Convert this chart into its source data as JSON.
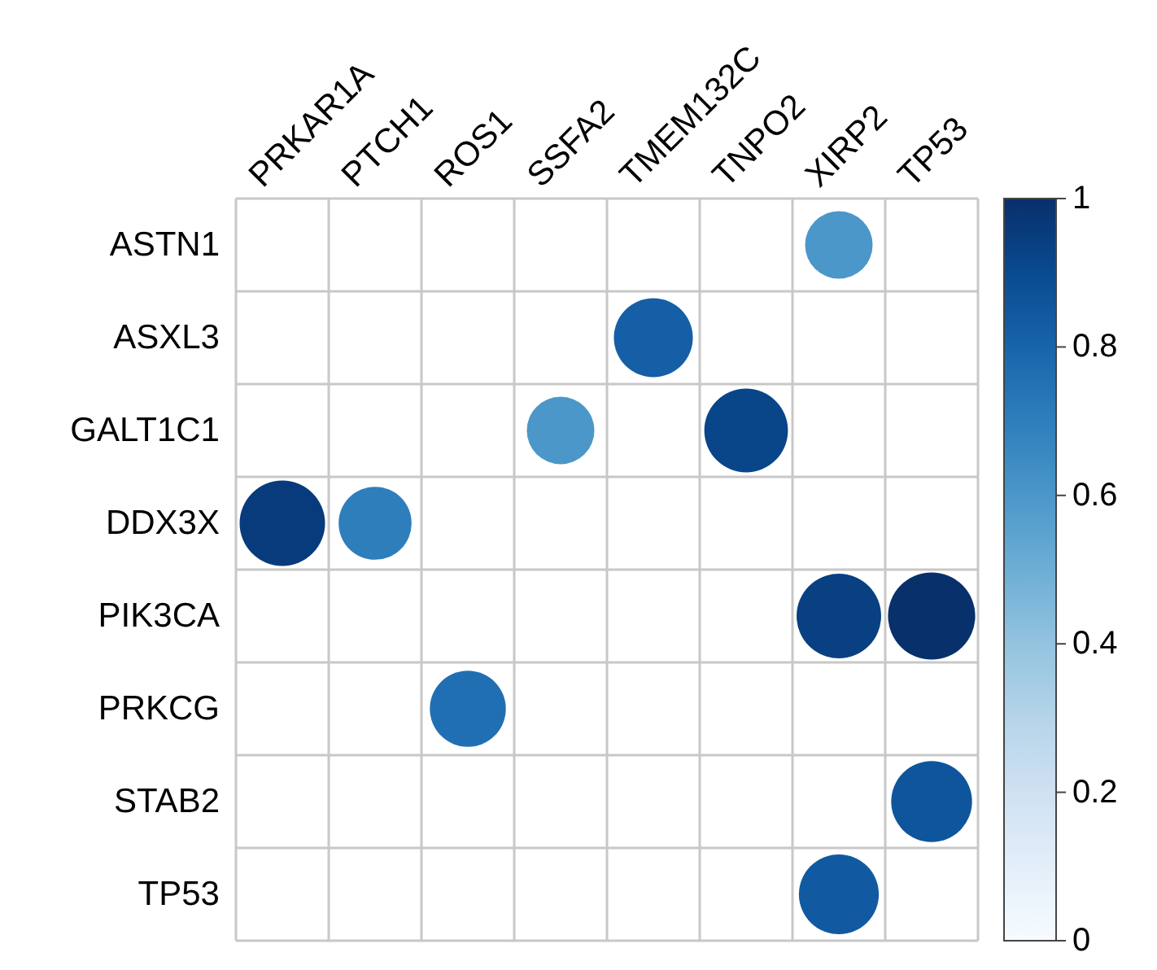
{
  "chart_data": {
    "type": "heatmap",
    "categories": [
      "PRKAR1A",
      "PTCH1",
      "ROS1",
      "SSFA2",
      "TMEM132C",
      "TNPO2",
      "XIRP2",
      "TP53"
    ],
    "y_categories": [
      "ASTN1",
      "ASXL3",
      "GALT1C1",
      "DDX3X",
      "PIK3CA",
      "PRKCG",
      "STAB2",
      "TP53"
    ],
    "cells": [
      [
        0,
        0,
        0,
        0,
        0,
        0,
        0.6,
        0
      ],
      [
        0,
        0,
        0,
        0,
        0.82,
        0,
        0,
        0
      ],
      [
        0,
        0,
        0,
        0.6,
        0,
        0.92,
        0,
        0
      ],
      [
        0.96,
        0.7,
        0,
        0,
        0,
        0,
        0,
        0
      ],
      [
        0,
        0,
        0,
        0,
        0,
        0,
        0.94,
        1
      ],
      [
        0,
        0,
        0.76,
        0,
        0,
        0,
        0,
        0
      ],
      [
        0,
        0,
        0,
        0,
        0,
        0,
        0,
        0.86
      ],
      [
        0,
        0,
        0,
        0,
        0,
        0,
        0.84,
        0
      ]
    ],
    "clim": [
      0,
      1
    ],
    "cticks": [
      0,
      0.2,
      0.4,
      0.6,
      0.8,
      1
    ]
  }
}
